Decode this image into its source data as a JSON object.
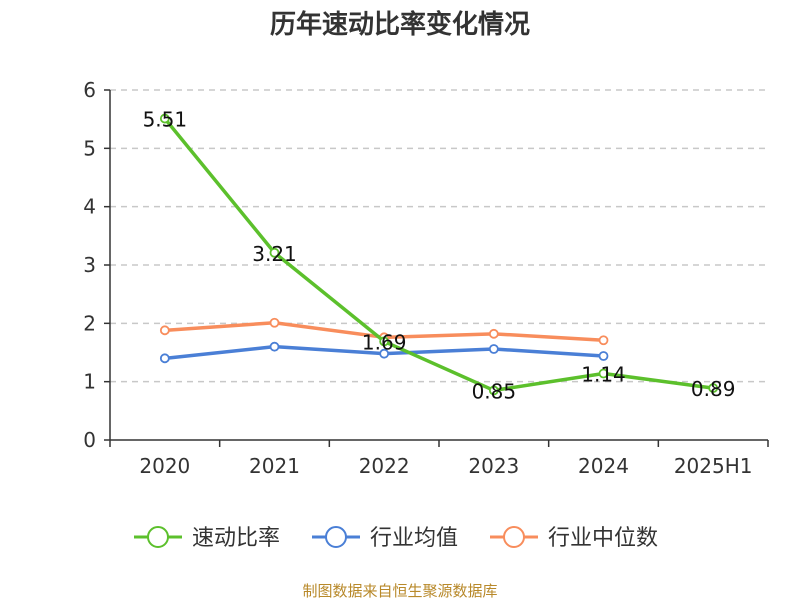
{
  "chart_data": {
    "type": "line",
    "title": "历年速动比率变化情况",
    "categories": [
      "2020",
      "2021",
      "2022",
      "2023",
      "2024",
      "2025H1"
    ],
    "ylim": [
      0,
      6
    ],
    "yticks": [
      "0",
      "1",
      "2",
      "3",
      "4",
      "5",
      "6"
    ],
    "grid": true,
    "legend_position": "bottom",
    "series": [
      {
        "name": "速动比率",
        "color": "#5cc02c",
        "values": [
          5.51,
          3.21,
          1.69,
          0.85,
          1.14,
          0.89
        ],
        "labels": [
          "5.51",
          "3.21",
          "1.69",
          "0.85",
          "1.14",
          "0.89"
        ]
      },
      {
        "name": "行业均值",
        "color": "#4a7fd6",
        "values": [
          1.4,
          1.6,
          1.48,
          1.56,
          1.44,
          null
        ]
      },
      {
        "name": "行业中位数",
        "color": "#f88d5c",
        "values": [
          1.88,
          2.01,
          1.76,
          1.82,
          1.71,
          null
        ]
      }
    ]
  },
  "source": "制图数据来自恒生聚源数据库"
}
